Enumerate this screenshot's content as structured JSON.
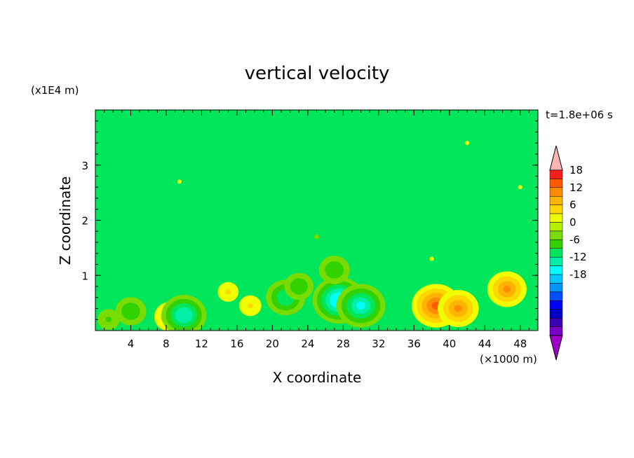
{
  "chart_data": {
    "type": "heatmap",
    "title": "vertical velocity",
    "xlabel": "X coordinate",
    "ylabel": "Z coordinate",
    "x_unit": "(×1000 m)",
    "y_unit": "(x1E4 m)",
    "time_label": "t=1.8e+06 s",
    "xlim": [
      0,
      50
    ],
    "ylim": [
      0,
      4
    ],
    "x_ticks": [
      "4",
      "8",
      "12",
      "16",
      "20",
      "24",
      "28",
      "32",
      "36",
      "40",
      "44",
      "48"
    ],
    "y_ticks": [
      "1",
      "2",
      "3"
    ],
    "colorbar": {
      "min": -21,
      "max": 21,
      "step": 3,
      "tick_labels": [
        "18",
        "12",
        "6",
        "0",
        "-6",
        "-12",
        "-18"
      ],
      "colors": [
        "#ffb4b4",
        "#ff1e1e",
        "#ff5a00",
        "#ff8c00",
        "#ffb400",
        "#ffd700",
        "#f0ff00",
        "#b4f000",
        "#78dc00",
        "#32d200",
        "#00e65a",
        "#00f0aa",
        "#00ffff",
        "#00c8ff",
        "#0096ff",
        "#0050ff",
        "#0000ff",
        "#0000c8",
        "#3c00b4",
        "#7800c8",
        "#a000c8"
      ]
    },
    "features": [
      {
        "x": 8.5,
        "z": 0.25,
        "value": 9
      },
      {
        "x": 10.0,
        "z": 0.28,
        "value": -13
      },
      {
        "x": 4.0,
        "z": 0.35,
        "value": -8
      },
      {
        "x": 1.5,
        "z": 0.2,
        "value": -6
      },
      {
        "x": 15.0,
        "z": 0.7,
        "value": 5
      },
      {
        "x": 17.5,
        "z": 0.45,
        "value": 6
      },
      {
        "x": 21.5,
        "z": 0.6,
        "value": -11
      },
      {
        "x": 23.0,
        "z": 0.8,
        "value": -7
      },
      {
        "x": 27.5,
        "z": 0.55,
        "value": -16
      },
      {
        "x": 30.0,
        "z": 0.45,
        "value": -15
      },
      {
        "x": 27.0,
        "z": 1.1,
        "value": -8
      },
      {
        "x": 25.0,
        "z": 1.7,
        "value": -3
      },
      {
        "x": 38.5,
        "z": 0.45,
        "value": 15
      },
      {
        "x": 41.0,
        "z": 0.4,
        "value": 12
      },
      {
        "x": 46.5,
        "z": 0.75,
        "value": 11
      },
      {
        "x": 38.0,
        "z": 1.3,
        "value": 2
      },
      {
        "x": 9.5,
        "z": 2.7,
        "value": 1
      },
      {
        "x": 48.0,
        "z": 2.6,
        "value": 1
      },
      {
        "x": 42.0,
        "z": 3.4,
        "value": 0.5
      }
    ]
  }
}
